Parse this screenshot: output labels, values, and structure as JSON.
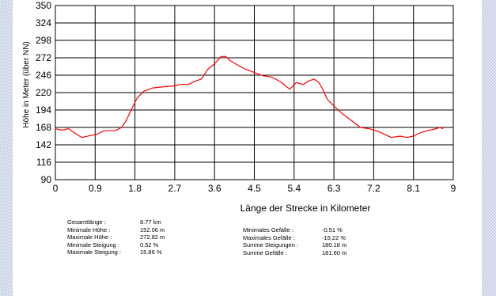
{
  "chart_data": {
    "type": "line",
    "title": "",
    "xlabel": "Länge der Strecke in Kilometer",
    "ylabel": "Höhe in Meter (über NN)",
    "xlim": [
      0,
      9
    ],
    "ylim": [
      90,
      350
    ],
    "x_ticks": [
      "0",
      "0.9",
      "1.8",
      "2.7",
      "3.6",
      "4.5",
      "5.4",
      "6.3",
      "7.2",
      "8.1",
      "9"
    ],
    "y_ticks": [
      "90",
      "116",
      "142",
      "168",
      "194",
      "220",
      "246",
      "272",
      "298",
      "324",
      "350"
    ],
    "grid": true,
    "series": [
      {
        "color": "#ff0000",
        "x": [
          0,
          0.15,
          0.3,
          0.45,
          0.6,
          0.8,
          0.95,
          1.1,
          1.35,
          1.5,
          1.6,
          1.7,
          1.85,
          2.0,
          2.2,
          2.5,
          2.7,
          2.8,
          3.0,
          3.2,
          3.3,
          3.45,
          3.6,
          3.75,
          3.85,
          3.95,
          4.1,
          4.3,
          4.5,
          4.7,
          4.9,
          5.1,
          5.3,
          5.45,
          5.6,
          5.75,
          5.85,
          5.95,
          6.05,
          6.15,
          6.3,
          6.5,
          6.7,
          6.9,
          7.1,
          7.3,
          7.5,
          7.6,
          7.8,
          7.95,
          8.1,
          8.25,
          8.4,
          8.55,
          8.7,
          8.77
        ],
        "y": [
          166,
          164,
          166,
          159,
          153,
          156,
          158,
          163,
          163,
          168,
          178,
          192,
          212,
          222,
          227,
          229,
          230,
          232,
          232,
          238,
          240,
          255,
          263,
          274,
          274,
          268,
          262,
          255,
          250,
          245,
          243,
          236,
          225,
          235,
          232,
          238,
          240,
          236,
          225,
          210,
          200,
          188,
          178,
          168,
          166,
          162,
          156,
          153,
          155,
          153,
          155,
          160,
          163,
          165,
          168,
          166
        ]
      }
    ]
  },
  "stats_left": [
    {
      "label": "Gesamtlänge :",
      "value": "8.77 km"
    },
    {
      "label": "Minimale Höhe :",
      "value": "152.06 m"
    },
    {
      "label": "Maximale Höhe :",
      "value": "272.82 m"
    },
    {
      "label": "Minimale Steigung :",
      "value": "0.52 %"
    },
    {
      "label": "Maximale Steigung :",
      "value": "15.86 %"
    }
  ],
  "stats_right": [
    {
      "label": "Minimales Gefälle :",
      "value": "-0.51 %"
    },
    {
      "label": "Maximales Gefälle :",
      "value": "-15.22 %"
    },
    {
      "label": "Summe Steigungen :",
      "value": "180.18 m"
    },
    {
      "label": "Summe Gefälle :",
      "value": "181.60 m"
    }
  ]
}
